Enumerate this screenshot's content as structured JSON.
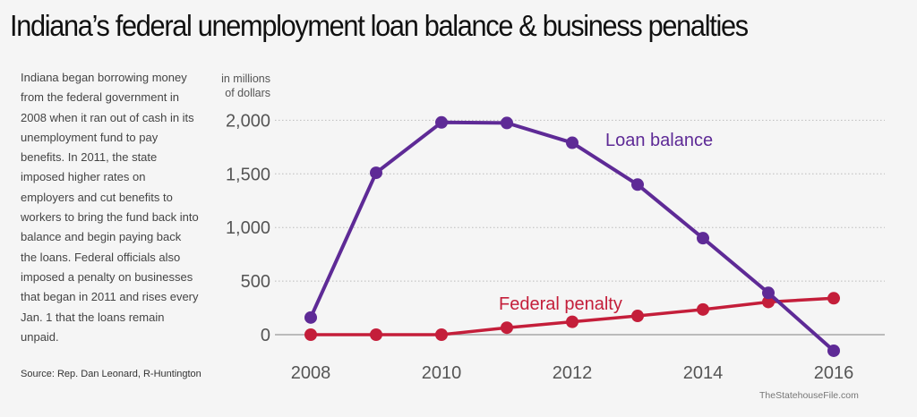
{
  "title": "Indiana’s federal unemployment loan balance & business penalties",
  "description": "Indiana began borrowing money from the federal government in 2008 when it ran out of cash in its unemployment fund to pay benefits. In 2011, the state imposed higher rates on employers and cut benefits to workers to bring the fund back into balance and begin paying back the loans. Federal officials also imposed a penalty on businesses that began in 2011 and rises every Jan. 1 that the loans remain unpaid.",
  "source": "Source: Rep. Dan Leonard, R-Huntington",
  "credit": "TheStatehouseFile.com",
  "colors": {
    "loan": "#5e2a96",
    "penalty": "#c41e3a",
    "background": "#f5f5f5"
  },
  "chart_data": {
    "type": "line",
    "title": "Indiana’s federal unemployment loan balance & business penalties",
    "ylabel": "in millions of dollars",
    "ylabel_lines": [
      "in millions",
      "of dollars"
    ],
    "xlabel": "",
    "x": [
      2008,
      2009,
      2010,
      2011,
      2012,
      2013,
      2014,
      2015,
      2016
    ],
    "x_tick_labels": [
      "2008",
      "2010",
      "2012",
      "2014",
      "2016"
    ],
    "y_tick_labels": [
      "0",
      "500",
      "1,000",
      "1,500",
      "2,000"
    ],
    "y_ticks": [
      0,
      500,
      1000,
      1500,
      2000
    ],
    "ylim": [
      -200,
      2100
    ],
    "grid": "horizontal dotted",
    "legend": "inline labels",
    "series": [
      {
        "name": "Loan balance",
        "color": "#5e2a96",
        "values": [
          160,
          1510,
          1980,
          1975,
          1790,
          1400,
          900,
          390,
          -150
        ]
      },
      {
        "name": "Federal penalty",
        "color": "#c41e3a",
        "values": [
          0,
          0,
          0,
          65,
          120,
          175,
          235,
          305,
          340
        ]
      }
    ]
  }
}
